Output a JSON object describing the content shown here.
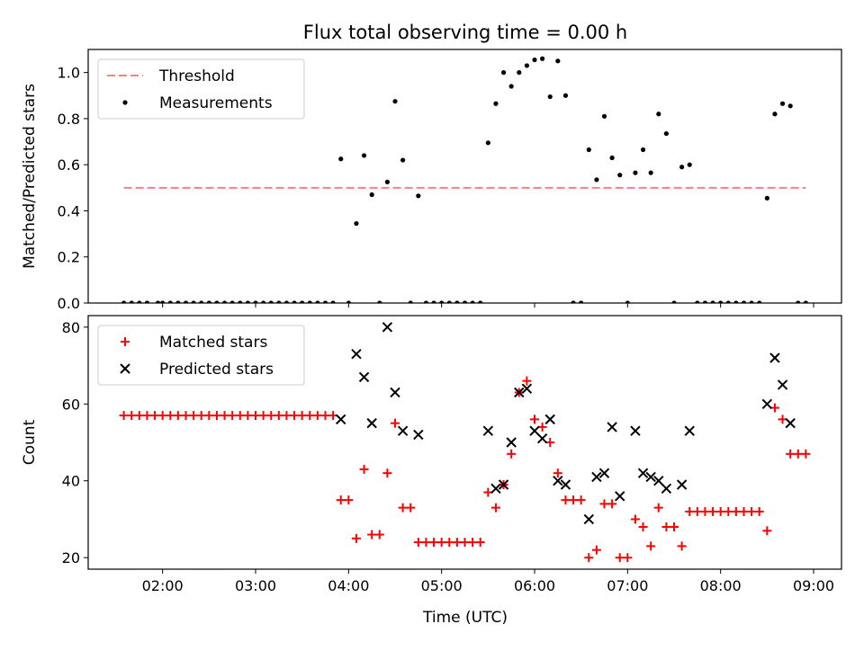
{
  "figure": {
    "title": "Flux total observing time = 0.00 h",
    "xlabel": "Time (UTC)"
  },
  "chart_data": [
    {
      "type": "scatter",
      "name": "top-panel",
      "ylabel": "Matched/Predicted stars",
      "ylim": [
        0,
        1.1
      ],
      "yticks": [
        0.0,
        0.2,
        0.4,
        0.6,
        0.8,
        1.0
      ],
      "ytick_labels": [
        "0.0",
        "0.2",
        "0.4",
        "0.6",
        "0.8",
        "1.0"
      ],
      "xlim": [
        "01:12",
        "09:18"
      ],
      "xticks": [
        "02:00",
        "03:00",
        "04:00",
        "05:00",
        "06:00",
        "07:00",
        "08:00",
        "09:00"
      ],
      "legend": {
        "placement": "top-left",
        "entries": [
          "Threshold",
          "Measurements"
        ]
      },
      "colors": {
        "threshold": "#ff7f7f",
        "measurements": "#000000"
      },
      "threshold": {
        "name": "Threshold",
        "value": 0.5,
        "x_start": "01:35",
        "x_end": "08:55"
      },
      "series": [
        {
          "name": "Measurements",
          "marker": "dot",
          "points": [
            [
              "01:35",
              0
            ],
            [
              "01:40",
              0
            ],
            [
              "01:45",
              0
            ],
            [
              "01:50",
              0
            ],
            [
              "01:57",
              0
            ],
            [
              "02:00",
              0
            ],
            [
              "02:05",
              0
            ],
            [
              "02:10",
              0
            ],
            [
              "02:15",
              0
            ],
            [
              "02:20",
              0
            ],
            [
              "02:25",
              0
            ],
            [
              "02:30",
              0
            ],
            [
              "02:35",
              0
            ],
            [
              "02:40",
              0
            ],
            [
              "02:45",
              0
            ],
            [
              "02:50",
              0
            ],
            [
              "02:55",
              0
            ],
            [
              "03:00",
              0
            ],
            [
              "03:05",
              0
            ],
            [
              "03:10",
              0
            ],
            [
              "03:15",
              0
            ],
            [
              "03:20",
              0
            ],
            [
              "03:25",
              0
            ],
            [
              "03:30",
              0
            ],
            [
              "03:35",
              0
            ],
            [
              "03:40",
              0
            ],
            [
              "03:45",
              0
            ],
            [
              "03:50",
              0
            ],
            [
              "03:55",
              0.625
            ],
            [
              "04:00",
              0
            ],
            [
              "04:05",
              0.345
            ],
            [
              "04:10",
              0.64
            ],
            [
              "04:15",
              0.47
            ],
            [
              "04:20",
              0
            ],
            [
              "04:25",
              0.525
            ],
            [
              "04:30",
              0.875
            ],
            [
              "04:35",
              0.62
            ],
            [
              "04:40",
              0
            ],
            [
              "04:45",
              0.465
            ],
            [
              "04:50",
              0
            ],
            [
              "04:55",
              0
            ],
            [
              "05:00",
              0
            ],
            [
              "05:05",
              0
            ],
            [
              "05:10",
              0
            ],
            [
              "05:15",
              0
            ],
            [
              "05:20",
              0
            ],
            [
              "05:25",
              0
            ],
            [
              "05:30",
              0.695
            ],
            [
              "05:35",
              0.865
            ],
            [
              "05:40",
              1.0
            ],
            [
              "05:45",
              0.94
            ],
            [
              "05:50",
              1.0
            ],
            [
              "05:55",
              1.03
            ],
            [
              "06:00",
              1.055
            ],
            [
              "06:05",
              1.06
            ],
            [
              "06:10",
              0.895
            ],
            [
              "06:15",
              1.05
            ],
            [
              "06:20",
              0.9
            ],
            [
              "06:25",
              0
            ],
            [
              "06:30",
              0
            ],
            [
              "06:35",
              0.665
            ],
            [
              "06:40",
              0.535
            ],
            [
              "06:45",
              0.81
            ],
            [
              "06:50",
              0.63
            ],
            [
              "06:55",
              0.555
            ],
            [
              "07:00",
              0
            ],
            [
              "07:05",
              0.565
            ],
            [
              "07:10",
              0.665
            ],
            [
              "07:15",
              0.565
            ],
            [
              "07:20",
              0.82
            ],
            [
              "07:25",
              0.735
            ],
            [
              "07:30",
              0
            ],
            [
              "07:35",
              0.59
            ],
            [
              "07:40",
              0.6
            ],
            [
              "07:45",
              0
            ],
            [
              "07:50",
              0
            ],
            [
              "07:55",
              0
            ],
            [
              "08:00",
              0
            ],
            [
              "08:05",
              0
            ],
            [
              "08:10",
              0
            ],
            [
              "08:15",
              0
            ],
            [
              "08:20",
              0
            ],
            [
              "08:25",
              0
            ],
            [
              "08:30",
              0.455
            ],
            [
              "08:35",
              0.82
            ],
            [
              "08:40",
              0.865
            ],
            [
              "08:45",
              0.855
            ],
            [
              "08:50",
              0
            ],
            [
              "08:55",
              0
            ]
          ]
        }
      ]
    },
    {
      "type": "scatter",
      "name": "bottom-panel",
      "ylabel": "Count",
      "ylim": [
        17,
        83
      ],
      "yticks": [
        20,
        40,
        60,
        80
      ],
      "ytick_labels": [
        "20",
        "40",
        "60",
        "80"
      ],
      "xlim": [
        "01:12",
        "09:18"
      ],
      "xticks": [
        "02:00",
        "03:00",
        "04:00",
        "05:00",
        "06:00",
        "07:00",
        "08:00",
        "09:00"
      ],
      "xtick_labels": [
        "02:00",
        "03:00",
        "04:00",
        "05:00",
        "06:00",
        "07:00",
        "08:00",
        "09:00"
      ],
      "legend": {
        "placement": "top-left",
        "entries": [
          "Matched stars",
          "Predicted stars"
        ]
      },
      "colors": {
        "matched": "#ff0000",
        "predicted": "#000000"
      },
      "series": [
        {
          "name": "Matched stars",
          "marker": "plus",
          "points": [
            [
              "01:35",
              57
            ],
            [
              "01:40",
              57
            ],
            [
              "01:45",
              57
            ],
            [
              "01:50",
              57
            ],
            [
              "01:55",
              57
            ],
            [
              "02:00",
              57
            ],
            [
              "02:05",
              57
            ],
            [
              "02:10",
              57
            ],
            [
              "02:15",
              57
            ],
            [
              "02:20",
              57
            ],
            [
              "02:25",
              57
            ],
            [
              "02:30",
              57
            ],
            [
              "02:35",
              57
            ],
            [
              "02:40",
              57
            ],
            [
              "02:45",
              57
            ],
            [
              "02:50",
              57
            ],
            [
              "02:55",
              57
            ],
            [
              "03:00",
              57
            ],
            [
              "03:05",
              57
            ],
            [
              "03:10",
              57
            ],
            [
              "03:15",
              57
            ],
            [
              "03:20",
              57
            ],
            [
              "03:25",
              57
            ],
            [
              "03:30",
              57
            ],
            [
              "03:35",
              57
            ],
            [
              "03:40",
              57
            ],
            [
              "03:45",
              57
            ],
            [
              "03:50",
              57
            ],
            [
              "03:55",
              35
            ],
            [
              "04:00",
              35
            ],
            [
              "04:05",
              25
            ],
            [
              "04:10",
              43
            ],
            [
              "04:15",
              26
            ],
            [
              "04:20",
              26
            ],
            [
              "04:25",
              42
            ],
            [
              "04:30",
              55
            ],
            [
              "04:35",
              33
            ],
            [
              "04:40",
              33
            ],
            [
              "04:45",
              24
            ],
            [
              "04:50",
              24
            ],
            [
              "04:55",
              24
            ],
            [
              "05:00",
              24
            ],
            [
              "05:05",
              24
            ],
            [
              "05:10",
              24
            ],
            [
              "05:15",
              24
            ],
            [
              "05:20",
              24
            ],
            [
              "05:25",
              24
            ],
            [
              "05:30",
              37
            ],
            [
              "05:35",
              33
            ],
            [
              "05:40",
              39
            ],
            [
              "05:45",
              47
            ],
            [
              "05:50",
              63
            ],
            [
              "05:55",
              66
            ],
            [
              "06:00",
              56
            ],
            [
              "06:05",
              54
            ],
            [
              "06:10",
              50
            ],
            [
              "06:15",
              42
            ],
            [
              "06:20",
              35
            ],
            [
              "06:25",
              35
            ],
            [
              "06:30",
              35
            ],
            [
              "06:35",
              20
            ],
            [
              "06:40",
              22
            ],
            [
              "06:45",
              34
            ],
            [
              "06:50",
              34
            ],
            [
              "06:55",
              20
            ],
            [
              "07:00",
              20
            ],
            [
              "07:05",
              30
            ],
            [
              "07:10",
              28
            ],
            [
              "07:15",
              23
            ],
            [
              "07:20",
              33
            ],
            [
              "07:25",
              28
            ],
            [
              "07:30",
              28
            ],
            [
              "07:35",
              23
            ],
            [
              "07:40",
              32
            ],
            [
              "07:45",
              32
            ],
            [
              "07:50",
              32
            ],
            [
              "07:55",
              32
            ],
            [
              "08:00",
              32
            ],
            [
              "08:05",
              32
            ],
            [
              "08:10",
              32
            ],
            [
              "08:15",
              32
            ],
            [
              "08:20",
              32
            ],
            [
              "08:25",
              32
            ],
            [
              "08:30",
              27
            ],
            [
              "08:35",
              59
            ],
            [
              "08:40",
              56
            ],
            [
              "08:45",
              47
            ],
            [
              "08:50",
              47
            ],
            [
              "08:55",
              47
            ]
          ]
        },
        {
          "name": "Predicted stars",
          "marker": "x",
          "points": [
            [
              "03:55",
              56
            ],
            [
              "04:05",
              73
            ],
            [
              "04:10",
              67
            ],
            [
              "04:15",
              55
            ],
            [
              "04:25",
              80
            ],
            [
              "04:30",
              63
            ],
            [
              "04:35",
              53
            ],
            [
              "04:45",
              52
            ],
            [
              "05:30",
              53
            ],
            [
              "05:35",
              38
            ],
            [
              "05:40",
              39
            ],
            [
              "05:45",
              50
            ],
            [
              "05:50",
              63
            ],
            [
              "05:55",
              64
            ],
            [
              "06:00",
              53
            ],
            [
              "06:05",
              51
            ],
            [
              "06:10",
              56
            ],
            [
              "06:15",
              40
            ],
            [
              "06:20",
              39
            ],
            [
              "06:35",
              30
            ],
            [
              "06:40",
              41
            ],
            [
              "06:45",
              42
            ],
            [
              "06:50",
              54
            ],
            [
              "06:55",
              36
            ],
            [
              "07:05",
              53
            ],
            [
              "07:10",
              42
            ],
            [
              "07:15",
              41
            ],
            [
              "07:20",
              40
            ],
            [
              "07:25",
              38
            ],
            [
              "07:35",
              39
            ],
            [
              "07:40",
              53
            ],
            [
              "08:30",
              60
            ],
            [
              "08:35",
              72
            ],
            [
              "08:40",
              65
            ],
            [
              "08:45",
              55
            ]
          ]
        }
      ]
    }
  ]
}
